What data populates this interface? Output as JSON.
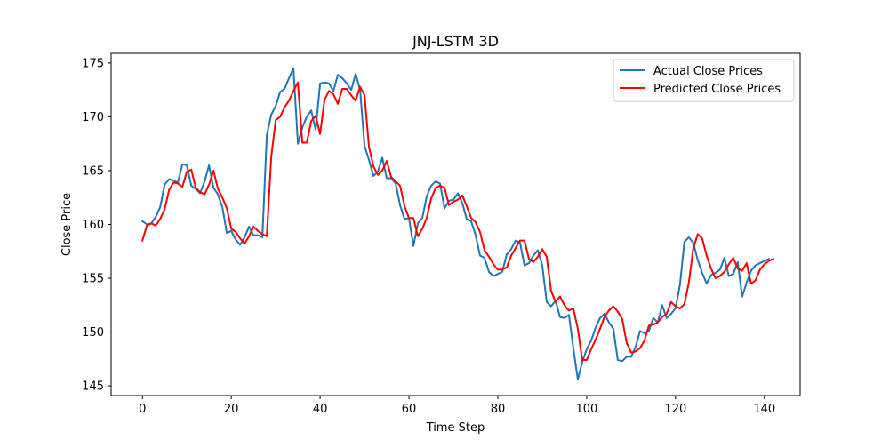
{
  "chart_data": {
    "type": "line",
    "title": "JNJ-LSTM 3D",
    "xlabel": "Time Step",
    "ylabel": "Close Price",
    "xlim": [
      -7.05,
      148.05
    ],
    "ylim": [
      144.1,
      175.9
    ],
    "xticks": [
      0,
      20,
      40,
      60,
      80,
      100,
      120,
      140
    ],
    "yticks": [
      145,
      150,
      155,
      160,
      165,
      170,
      175
    ],
    "grid": false,
    "legend_position": "upper right",
    "series": [
      {
        "name": "Actual Close Prices",
        "color": "#1f77b4",
        "values": [
          160.3,
          160.0,
          160.1,
          160.7,
          161.6,
          163.7,
          164.2,
          164.1,
          163.9,
          165.6,
          165.5,
          163.6,
          163.3,
          162.9,
          164.0,
          165.5,
          163.4,
          162.8,
          161.6,
          159.2,
          159.4,
          158.6,
          158.1,
          158.8,
          159.8,
          159.0,
          159.0,
          158.8,
          168.3,
          170.2,
          171.0,
          172.3,
          172.6,
          173.6,
          174.5,
          167.5,
          169.0,
          170.0,
          170.6,
          168.8,
          173.1,
          173.2,
          173.1,
          172.4,
          173.9,
          173.6,
          173.1,
          172.5,
          174.0,
          172.5,
          167.3,
          166.0,
          164.5,
          164.9,
          166.2,
          164.3,
          164.3,
          163.8,
          161.8,
          160.5,
          160.6,
          158.0,
          160.1,
          160.6,
          162.6,
          163.6,
          164.0,
          163.8,
          161.5,
          162.2,
          162.3,
          162.9,
          162.0,
          160.5,
          160.3,
          159.0,
          157.1,
          156.9,
          155.6,
          155.2,
          155.4,
          155.6,
          157.2,
          157.7,
          158.5,
          158.3,
          156.2,
          156.4,
          157.1,
          157.6,
          156.2,
          152.8,
          152.4,
          152.9,
          151.4,
          151.3,
          151.6,
          148.5,
          145.6,
          147.2,
          148.4,
          149.2,
          150.4,
          151.3,
          151.7,
          150.9,
          150.3,
          147.4,
          147.3,
          147.7,
          147.7,
          148.6,
          150.1,
          149.9,
          150.1,
          151.3,
          150.9,
          152.5,
          151.3,
          151.7,
          152.2,
          154.4,
          158.4,
          158.8,
          158.3,
          156.7,
          155.5,
          154.5,
          155.3,
          155.5,
          155.8,
          156.9,
          155.2,
          155.4,
          156.5,
          153.3,
          154.6,
          155.7,
          156.2,
          156.4,
          156.6,
          156.8
        ]
      },
      {
        "name": "Predicted Close Prices",
        "color": "#ff0000",
        "values": [
          158.5,
          159.9,
          160.1,
          159.9,
          160.5,
          161.4,
          163.2,
          163.9,
          163.8,
          163.5,
          164.9,
          165.1,
          163.4,
          163.0,
          162.8,
          163.7,
          165.0,
          163.3,
          162.5,
          161.5,
          159.6,
          159.3,
          158.7,
          158.2,
          158.9,
          159.8,
          159.4,
          159.1,
          158.9,
          166.3,
          169.7,
          170.0,
          170.9,
          171.5,
          172.4,
          173.2,
          167.6,
          167.6,
          169.6,
          170.1,
          168.4,
          171.6,
          172.4,
          172.1,
          171.2,
          172.6,
          172.6,
          172.0,
          171.5,
          172.8,
          172.0,
          167.2,
          165.4,
          164.6,
          165.0,
          165.9,
          164.4,
          164.0,
          163.6,
          161.7,
          160.6,
          160.6,
          158.9,
          159.6,
          160.6,
          162.4,
          163.4,
          163.6,
          163.4,
          161.8,
          162.1,
          162.3,
          162.7,
          161.7,
          160.6,
          160.2,
          159.3,
          157.6,
          157.0,
          156.3,
          155.8,
          155.8,
          156.0,
          157.1,
          157.8,
          158.5,
          158.5,
          156.8,
          156.5,
          157.0,
          157.7,
          157.0,
          153.8,
          152.8,
          153.3,
          152.5,
          152.0,
          152.2,
          150.3,
          147.4,
          147.4,
          148.4,
          149.3,
          150.3,
          151.4,
          152.0,
          152.4,
          151.9,
          151.2,
          149.0,
          148.1,
          148.2,
          148.5,
          149.2,
          150.6,
          150.7,
          150.9,
          151.4,
          151.7,
          152.8,
          152.4,
          152.2,
          152.6,
          154.6,
          157.8,
          159.1,
          158.7,
          157.1,
          155.9,
          155.0,
          155.2,
          155.6,
          156.3,
          156.9,
          155.9,
          155.7,
          156.4,
          154.5,
          154.8,
          155.8,
          156.3,
          156.6,
          156.8
        ]
      }
    ]
  }
}
